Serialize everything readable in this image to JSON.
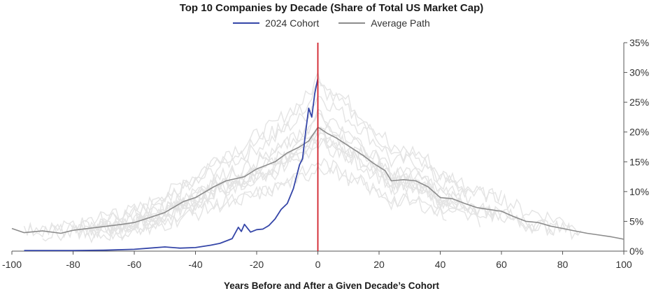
{
  "chart_data": {
    "type": "line",
    "title": "Top 10 Companies by Decade (Share of Total US Market Cap)",
    "xlabel": "Years Before and After a Given Decade’s Cohort",
    "ylabel": "",
    "xlim": [
      -100,
      100
    ],
    "ylim": [
      0,
      35
    ],
    "x_ticks": [
      -100,
      -80,
      -60,
      -40,
      -20,
      0,
      20,
      40,
      60,
      80,
      100
    ],
    "x_tick_labels": [
      "-100",
      "-80",
      "-60",
      "-40",
      "-20",
      "0",
      "20",
      "40",
      "60",
      "80",
      "100"
    ],
    "y_ticks": [
      0,
      5,
      10,
      15,
      20,
      25,
      30,
      35
    ],
    "y_tick_labels": [
      "0%",
      "5%",
      "10%",
      "15%",
      "20%",
      "25%",
      "30%",
      "35%"
    ],
    "y_axis_side": "right",
    "grid": false,
    "legend_position": "top-center",
    "reference_line": {
      "x": 0,
      "color": "#d0202a"
    },
    "series": [
      {
        "name": "2024 Cohort",
        "color": "#3546a8",
        "x": [
          -96,
          -90,
          -80,
          -70,
          -60,
          -55,
          -50,
          -45,
          -40,
          -35,
          -32,
          -30,
          -28,
          -26,
          -25,
          -24,
          -22,
          -20,
          -18,
          -16,
          -14,
          -12,
          -10,
          -8,
          -7,
          -6,
          -5,
          -4,
          -3,
          -2,
          -1,
          0
        ],
        "y": [
          0.1,
          0.1,
          0.1,
          0.15,
          0.3,
          0.5,
          0.7,
          0.5,
          0.6,
          1.0,
          1.3,
          1.7,
          2.1,
          4.0,
          3.3,
          4.5,
          3.2,
          3.6,
          3.7,
          4.3,
          5.4,
          7.0,
          8.0,
          10.5,
          12.5,
          14.5,
          15.5,
          20.0,
          24.0,
          22.5,
          26.5,
          29.0
        ]
      },
      {
        "name": "Average Path",
        "color": "#8c8c8c",
        "x": [
          -100,
          -96,
          -90,
          -84,
          -80,
          -72,
          -64,
          -60,
          -54,
          -50,
          -44,
          -40,
          -34,
          -30,
          -24,
          -20,
          -14,
          -10,
          -6,
          -3,
          -1,
          0,
          1,
          3,
          6,
          9,
          12,
          15,
          18,
          22,
          24,
          28,
          32,
          36,
          40,
          44,
          48,
          52,
          56,
          60,
          64,
          68,
          72,
          76,
          80,
          84,
          88,
          92,
          96,
          100
        ],
        "y": [
          3.8,
          3.1,
          3.4,
          3.0,
          3.5,
          4.0,
          4.5,
          4.8,
          5.8,
          6.5,
          8.3,
          9.0,
          10.8,
          11.8,
          12.5,
          13.8,
          15.0,
          16.5,
          17.5,
          18.5,
          20.0,
          20.8,
          20.5,
          19.8,
          19.0,
          18.0,
          17.0,
          16.0,
          14.8,
          13.5,
          11.8,
          12.0,
          11.8,
          10.8,
          9.0,
          8.8,
          8.0,
          7.3,
          7.0,
          6.7,
          5.8,
          5.0,
          4.8,
          4.2,
          3.8,
          3.4,
          3.0,
          2.7,
          2.4,
          2.0
        ]
      }
    ]
  }
}
